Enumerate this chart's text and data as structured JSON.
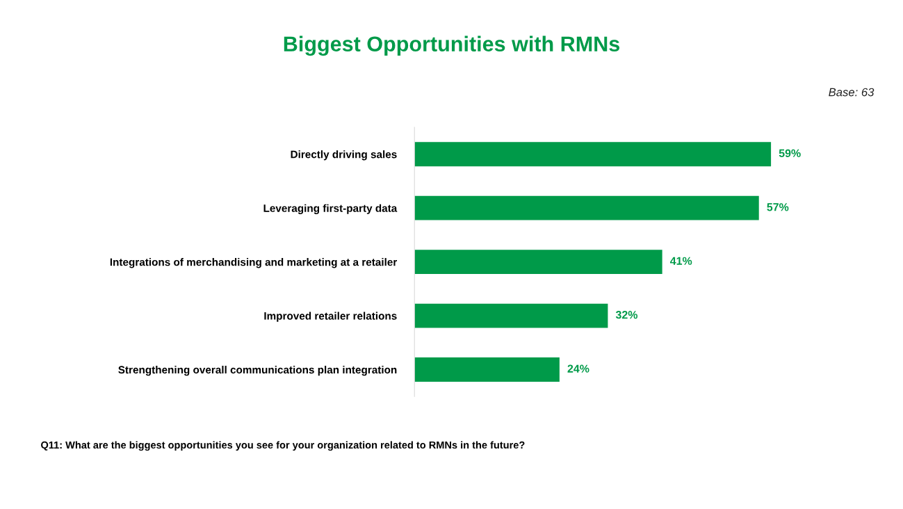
{
  "chart_data": {
    "type": "bar",
    "orientation": "horizontal",
    "title": "Biggest Opportunities with RMNs",
    "categories": [
      "Directly driving sales",
      "Leveraging first-party data",
      "Integrations of merchandising and marketing at a retailer",
      "Improved retailer relations",
      "Strengthening overall communications plan integration"
    ],
    "values": [
      59,
      57,
      41,
      32,
      24
    ],
    "value_labels": [
      "59%",
      "57%",
      "41%",
      "32%",
      "24%"
    ],
    "color": "#009a49",
    "tick_labels": "y",
    "grid": false,
    "legend": false,
    "annotations": [
      "Base: 63",
      "Q11: What are the biggest opportunities you see for your organization related to RMNs in the future?"
    ]
  }
}
